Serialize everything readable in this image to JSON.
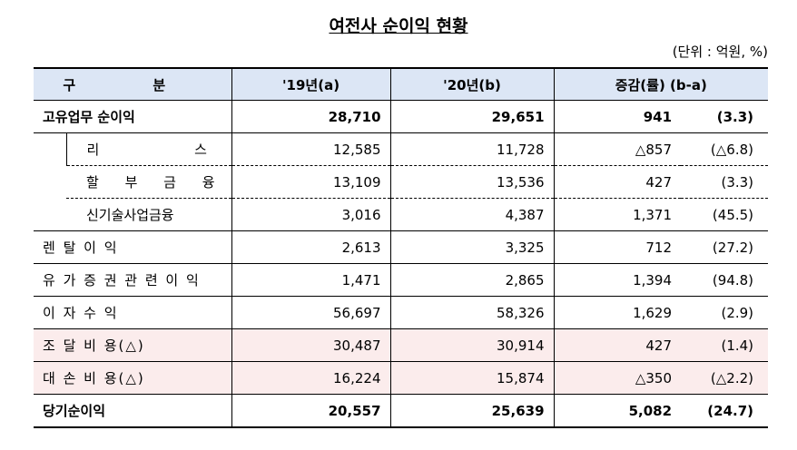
{
  "title": "여전사 순이익 현황",
  "unit": "(단위 : 억원, %)",
  "table": {
    "header": [
      "구 분",
      "'19년(a)",
      "'20년(b)",
      "증감(률) (b-a)"
    ],
    "rows": [
      [
        "고유업무 순이익",
        "28,710",
        "29,651",
        "941",
        "(3.3)"
      ],
      [
        "리 스",
        "12,585",
        "11,728",
        "△857",
        "(△6.8)"
      ],
      [
        "할 부 금 융",
        "13,109",
        "13,536",
        "427",
        "(3.3)"
      ],
      [
        "신기술사업금융",
        "3,016",
        "4,387",
        "1,371",
        "(45.5)"
      ],
      [
        "렌 탈 이 익",
        "2,613",
        "3,325",
        "712",
        "(27.2)"
      ],
      [
        "유 가 증 권 관 련 이 익",
        "1,471",
        "2,865",
        "1,394",
        "(94.8)"
      ],
      [
        "이 자 수 익",
        "56,697",
        "58,326",
        "1,629",
        "(2.9)"
      ],
      [
        "조 달 비 용(△)",
        "30,487",
        "30,914",
        "427",
        "(1.4)"
      ],
      [
        "대 손 비 용(△)",
        "16,224",
        "15,874",
        "△350",
        "(△2.2)"
      ],
      [
        "당기순이익",
        "20,557",
        "25,639",
        "5,082",
        "(24.7)"
      ]
    ]
  }
}
